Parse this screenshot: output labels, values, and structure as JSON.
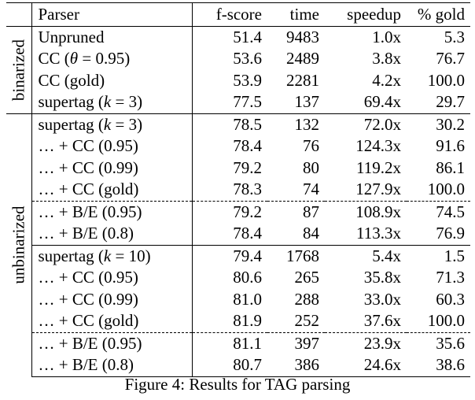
{
  "table": {
    "headers": {
      "parser": "Parser",
      "fscore": "f-score",
      "time": "time",
      "speedup": "speedup",
      "gold": "% gold"
    },
    "groups": [
      {
        "label": "binarized",
        "rows": [
          {
            "parser": "Unpruned",
            "fscore": "51.4",
            "time": "9483",
            "speedup": "1.0x",
            "gold": "5.3"
          },
          {
            "parser": "CC (θ = 0.95)",
            "fscore": "53.6",
            "time": "2489",
            "speedup": "3.8x",
            "gold": "76.7"
          },
          {
            "parser": "CC (gold)",
            "fscore": "53.9",
            "time": "2281",
            "speedup": "4.2x",
            "gold": "100.0"
          },
          {
            "parser": "supertag (k = 3)",
            "fscore": "77.5",
            "time": "137",
            "speedup": "69.4x",
            "gold": "29.7"
          }
        ]
      },
      {
        "label": "unbinarized",
        "rows": [
          {
            "parser": "supertag (k = 3)",
            "fscore": "78.5",
            "time": "132",
            "speedup": "72.0x",
            "gold": "30.2"
          },
          {
            "parser": "… + CC (0.95)",
            "fscore": "78.4",
            "time": "76",
            "speedup": "124.3x",
            "gold": "91.6",
            "speedup_bold": true
          },
          {
            "parser": "… + CC (0.99)",
            "fscore": "79.2",
            "time": "80",
            "speedup": "119.2x",
            "gold": "86.1"
          },
          {
            "parser": "… + CC (gold)",
            "fscore": "78.3",
            "time": "74",
            "speedup": "127.9x",
            "gold": "100.0"
          },
          {
            "parser": "… + B/E (0.95)",
            "fscore": "79.2",
            "time": "87",
            "speedup": "108.9x",
            "gold": "74.5"
          },
          {
            "parser": "… + B/E (0.8)",
            "fscore": "78.4",
            "time": "84",
            "speedup": "113.3x",
            "gold": "76.9"
          },
          {
            "parser": "supertag (k = 10)",
            "fscore": "79.4",
            "time": "1768",
            "speedup": "5.4x",
            "gold": "1.5"
          },
          {
            "parser": "… + CC (0.95)",
            "fscore": "80.6",
            "time": "265",
            "speedup": "35.8x",
            "gold": "71.3"
          },
          {
            "parser": "… + CC (0.99)",
            "fscore": "81.0",
            "time": "288",
            "speedup": "33.0x",
            "gold": "60.3"
          },
          {
            "parser": "… + CC (gold)",
            "fscore": "81.9",
            "time": "252",
            "speedup": "37.6x",
            "gold": "100.0"
          },
          {
            "parser": "… + B/E (0.95)",
            "fscore": "81.1",
            "time": "397",
            "speedup": "23.9x",
            "gold": "35.6"
          },
          {
            "parser": "… + B/E (0.8)",
            "fscore": "80.7",
            "time": "386",
            "speedup": "24.6x",
            "gold": "38.6"
          }
        ]
      }
    ]
  },
  "caption": "Figure 4: Results for TAG parsing"
}
